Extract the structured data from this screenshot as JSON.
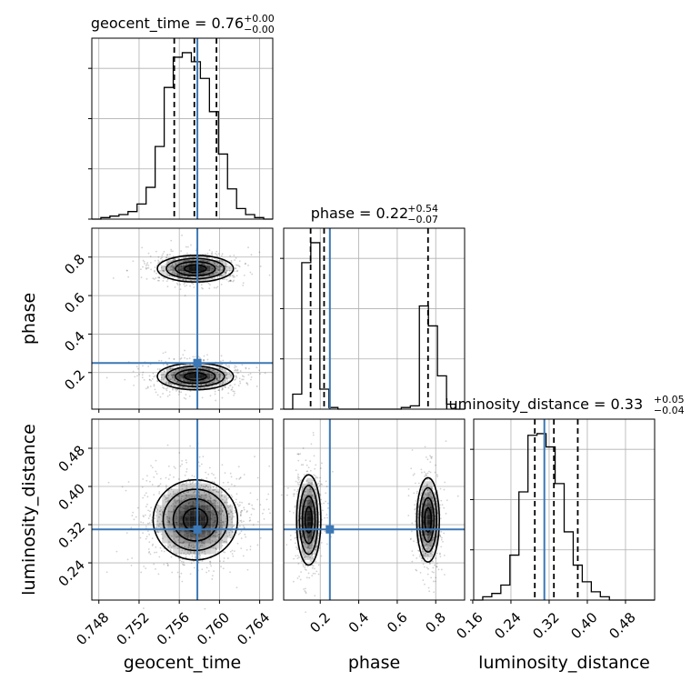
{
  "chart_data": {
    "type": "scatter",
    "variant": "corner-plot",
    "grid": true,
    "parameters": [
      {
        "name": "geocent_time",
        "label": "geocent_time",
        "title": "geocent_time = 0.76",
        "err_plus": "+0.00",
        "err_minus": "−0.00",
        "range": [
          0.7473,
          0.7653
        ],
        "ticks": [
          0.748,
          0.752,
          0.756,
          0.76,
          0.764
        ],
        "tick_labels": [
          "0.748",
          "0.752",
          "0.756",
          "0.760",
          "0.764"
        ],
        "truth": 0.7578,
        "quantiles": [
          0.7555,
          0.7575,
          0.7597
        ],
        "hist_counts": [
          0,
          1,
          2,
          3,
          5,
          10,
          21,
          48,
          87,
          107,
          110,
          104,
          93,
          71,
          43,
          20,
          7,
          3,
          1,
          0
        ]
      },
      {
        "name": "phase",
        "label": "phase",
        "title": "phase = 0.22",
        "err_plus": "+0.54",
        "err_minus": "−0.07",
        "range": [
          0.01,
          0.95
        ],
        "ticks": [
          0.2,
          0.4,
          0.6,
          0.8
        ],
        "tick_labels": [
          "0.2",
          "0.4",
          "0.6",
          "0.8"
        ],
        "truth": 0.25,
        "quantiles": [
          0.15,
          0.22,
          0.76
        ],
        "hist_counts": [
          0,
          9,
          88,
          100,
          12,
          1,
          0,
          0,
          0,
          0,
          0,
          0,
          0,
          1,
          2,
          62,
          50,
          20,
          3,
          0
        ]
      },
      {
        "name": "luminosity_distance",
        "label": "luminosity_distance",
        "title": "luminosity_distance = 0.33",
        "err_plus": "+0.05",
        "err_minus": "−0.04",
        "range": [
          0.162,
          0.541
        ],
        "ticks": [
          0.16,
          0.24,
          0.32,
          0.4,
          0.48
        ],
        "tick_labels": [
          "0.16",
          "0.24",
          "0.32",
          "0.40",
          "0.48"
        ],
        "truth": 0.31,
        "quantiles": [
          0.29,
          0.33,
          0.38
        ],
        "hist_counts": [
          0,
          2,
          4,
          9,
          27,
          65,
          99,
          100,
          92,
          70,
          41,
          21,
          11,
          5,
          2,
          0,
          0,
          0,
          0,
          0
        ]
      }
    ]
  }
}
